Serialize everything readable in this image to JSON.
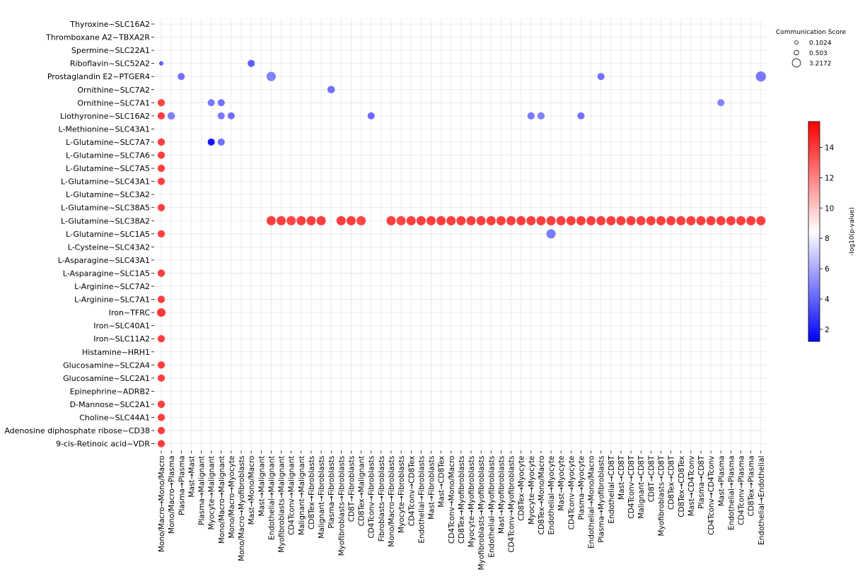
{
  "chart_data": {
    "type": "scatter",
    "subtype": "dot-plot",
    "title": "",
    "xlabel": "",
    "ylabel": "",
    "grid": true,
    "y_categories": [
      "Thyroxine~SLC16A2",
      "Thromboxane A2~TBXA2R",
      "Spermine~SLC22A1",
      "Riboflavin~SLC52A2",
      "Prostaglandin E2~PTGER4",
      "Ornithine~SLC7A2",
      "Ornithine~SLC7A1",
      "Liothyronine~SLC16A2",
      "L-Methionine~SLC43A1",
      "L-Glutamine~SLC7A7",
      "L-Glutamine~SLC7A6",
      "L-Glutamine~SLC7A5",
      "L-Glutamine~SLC43A1",
      "L-Glutamine~SLC3A2",
      "L-Glutamine~SLC38A5",
      "L-Glutamine~SLC38A2",
      "L-Glutamine~SLC1A5",
      "L-Cysteine~SLC43A2",
      "L-Asparagine~SLC43A1",
      "L-Asparagine~SLC1A5",
      "L-Arginine~SLC7A2",
      "L-Arginine~SLC7A1",
      "Iron~TFRC",
      "Iron~SLC40A1",
      "Iron~SLC11A2",
      "Histamine~HRH1",
      "Glucosamine~SLC2A4",
      "Glucosamine~SLC2A1",
      "Epinephrine~ADRB2",
      "D-Mannose~SLC2A1",
      "Choline~SLC44A1",
      "Adenosine diphosphate ribose~CD38",
      "9-cis-Retinoic acid~VDR"
    ],
    "x_categories": [
      "Mono/Macro→Mono/Macro",
      "Mono/Macro→Plasma",
      "Plasma→Plasma",
      "Mast→Mast",
      "Plasma→Malignant",
      "Myocyte→Malignant",
      "Mono/Macro→Malignant",
      "Mono/Macro→Myocyte",
      "Mono/Macro→Myofibroblasts",
      "Mast→Mono/Macro",
      "Mast→Malignant",
      "Endothelial→Malignant",
      "Myofibroblasts→Malignant",
      "CD4Tconv→Malignant",
      "Malignant→Malignant",
      "CD8Tex→Fibroblasts",
      "Malignant→Fibroblasts",
      "Plasma→Fibroblasts",
      "Myofibroblasts→Fibroblasts",
      "CD8T→Fibroblasts",
      "CD8Tex→Malignant",
      "CD4Tconv→Fibroblasts",
      "Fibroblasts→Fibroblasts",
      "Mono/Macro→Fibroblasts",
      "Myocyte→Fibroblasts",
      "CD4Tconv→CD8Tex",
      "Endothelial→Fibroblasts",
      "Mast→Fibroblasts",
      "Mast→CD8Tex",
      "CD4Tconv→Mono/Macro",
      "CD8Tex→Myofibroblasts",
      "Myocyte→Myofibroblasts",
      "Myofibroblasts→Myofibroblasts",
      "Endothelial→Myofibroblasts",
      "Mast→Myofibroblasts",
      "CD4Tconv→Myofibroblasts",
      "CD8Tex→Myocyte",
      "Myocyte→Myocyte",
      "CD8Tex→Mono/Macro",
      "Endothelial→Myocyte",
      "Mast→Myocyte",
      "CD4Tconv→Myocyte",
      "Plasma→Myocyte",
      "Endothelial→Mono/Macro",
      "Plasma→Myofibroblasts",
      "Endothelial→CD8T",
      "Mast→CD8T",
      "CD4Tconv→CD8T",
      "Malignant→CD8T",
      "CD8T→CD8T",
      "Myofibroblasts→CD8T",
      "CD8Tex→CD8T",
      "CD8Tex→CD8Tex",
      "Mast→CD4Tconv",
      "Plasma→CD8T",
      "CD4Tconv→CD4Tconv",
      "Mast→Plasma",
      "Endothelial→Plasma",
      "CD4Tconv→Plasma",
      "CD8Tex→Plasma",
      "Endothelial→Endothelial"
    ],
    "size_legend": {
      "title": "Communication Score",
      "values": [
        0.1024,
        0.503,
        3.2172
      ],
      "labels": [
        "0.1024",
        "0.503",
        "3.2172"
      ]
    },
    "colorbar": {
      "label": "-log10(p-value)",
      "range": [
        1.2,
        15.7
      ],
      "ticks": [
        2,
        4,
        6,
        8,
        10,
        12,
        14
      ],
      "tick_labels": [
        "2",
        "4",
        "6",
        "8",
        "10",
        "12",
        "14"
      ],
      "colors": [
        "#0000ff",
        "#ffffff",
        "#ff0000"
      ]
    },
    "points": [
      [
        3,
        0,
        3.9,
        0.25
      ],
      [
        4,
        2,
        4.4,
        1.2
      ],
      [
        3,
        9,
        3.9,
        1.2
      ],
      [
        4,
        11,
        4.9,
        2.5
      ],
      [
        5,
        17,
        4.4,
        1.4
      ],
      [
        7,
        21,
        4.2,
        1.2
      ],
      [
        16,
        39,
        4.7,
        2.5
      ],
      [
        4,
        44,
        4.4,
        1.2
      ],
      [
        4,
        60,
        4.6,
        3.2
      ],
      [
        6,
        56,
        4.9,
        1.2
      ],
      [
        6,
        5,
        4.6,
        1.2
      ],
      [
        6,
        6,
        4.4,
        1.2
      ],
      [
        9,
        5,
        1.8,
        1.2
      ],
      [
        9,
        6,
        4.4,
        1.2
      ],
      [
        7,
        1,
        4.9,
        1.4
      ],
      [
        7,
        6,
        4.7,
        1.2
      ],
      [
        7,
        7,
        4.4,
        1.2
      ],
      [
        7,
        37,
        4.7,
        1.3
      ],
      [
        7,
        38,
        4.9,
        1.3
      ],
      [
        7,
        42,
        4.4,
        1.2
      ],
      [
        6,
        0,
        13.7,
        1.3
      ],
      [
        7,
        0,
        13.9,
        1.3
      ],
      [
        9,
        0,
        13.9,
        1.3
      ],
      [
        10,
        0,
        13.9,
        1.3
      ],
      [
        11,
        0,
        13.9,
        1.3
      ],
      [
        12,
        0,
        13.9,
        1.3
      ],
      [
        14,
        0,
        13.9,
        1.3
      ],
      [
        16,
        0,
        13.9,
        1.3
      ],
      [
        19,
        0,
        13.9,
        1.3
      ],
      [
        21,
        0,
        13.9,
        1.3
      ],
      [
        24,
        0,
        13.9,
        1.3
      ],
      [
        26,
        0,
        13.9,
        1.3
      ],
      [
        27,
        0,
        13.9,
        1.3
      ],
      [
        29,
        0,
        13.9,
        1.3
      ],
      [
        30,
        0,
        13.9,
        1.3
      ],
      [
        31,
        0,
        13.9,
        1.3
      ],
      [
        32,
        0,
        13.9,
        1.3
      ],
      [
        22,
        0,
        14.1,
        2.0
      ],
      [
        15,
        13,
        13.7,
        2.5
      ],
      [
        15,
        20,
        13.7,
        2.5
      ],
      [
        15,
        24,
        13.7,
        2.5
      ],
      [
        15,
        27,
        13.9,
        2.5
      ],
      [
        15,
        31,
        13.9,
        2.5
      ],
      [
        15,
        40,
        13.9,
        2.5
      ],
      [
        15,
        50,
        13.9,
        2.5
      ],
      [
        15,
        56,
        13.9,
        2.5
      ],
      [
        15,
        11,
        13.9,
        2.5
      ],
      [
        15,
        15,
        13.9,
        2.5
      ],
      [
        15,
        14,
        13.9,
        2.5
      ],
      [
        15,
        12,
        13.9,
        2.5
      ],
      [
        15,
        16,
        13.9,
        2.5
      ],
      [
        15,
        18,
        13.9,
        2.5
      ],
      [
        15,
        19,
        13.9,
        2.5
      ],
      [
        15,
        23,
        13.9,
        2.5
      ],
      [
        15,
        25,
        13.9,
        2.5
      ],
      [
        15,
        26,
        13.9,
        2.5
      ],
      [
        15,
        28,
        13.9,
        2.5
      ],
      [
        15,
        29,
        13.9,
        2.5
      ],
      [
        15,
        30,
        13.9,
        2.5
      ],
      [
        15,
        32,
        13.9,
        2.5
      ],
      [
        15,
        33,
        13.9,
        2.5
      ],
      [
        15,
        34,
        13.9,
        2.5
      ],
      [
        15,
        35,
        13.9,
        2.5
      ],
      [
        15,
        36,
        13.9,
        2.5
      ],
      [
        15,
        37,
        13.9,
        2.5
      ],
      [
        15,
        38,
        13.9,
        2.5
      ],
      [
        15,
        39,
        13.9,
        2.5
      ],
      [
        15,
        41,
        13.9,
        2.5
      ],
      [
        15,
        42,
        13.9,
        2.5
      ],
      [
        15,
        43,
        13.9,
        2.5
      ],
      [
        15,
        44,
        13.9,
        2.5
      ],
      [
        15,
        45,
        13.9,
        2.5
      ],
      [
        15,
        46,
        13.9,
        2.5
      ],
      [
        15,
        47,
        13.9,
        2.5
      ],
      [
        15,
        48,
        13.9,
        2.5
      ],
      [
        15,
        49,
        13.9,
        2.5
      ],
      [
        15,
        51,
        13.9,
        2.5
      ],
      [
        15,
        52,
        13.9,
        2.5
      ],
      [
        15,
        53,
        13.9,
        2.5
      ],
      [
        15,
        54,
        13.9,
        2.5
      ],
      [
        15,
        55,
        13.9,
        2.5
      ],
      [
        15,
        57,
        13.9,
        2.5
      ],
      [
        15,
        58,
        13.9,
        2.5
      ],
      [
        15,
        59,
        13.9,
        2.5
      ],
      [
        15,
        60,
        13.9,
        2.5
      ]
    ]
  }
}
